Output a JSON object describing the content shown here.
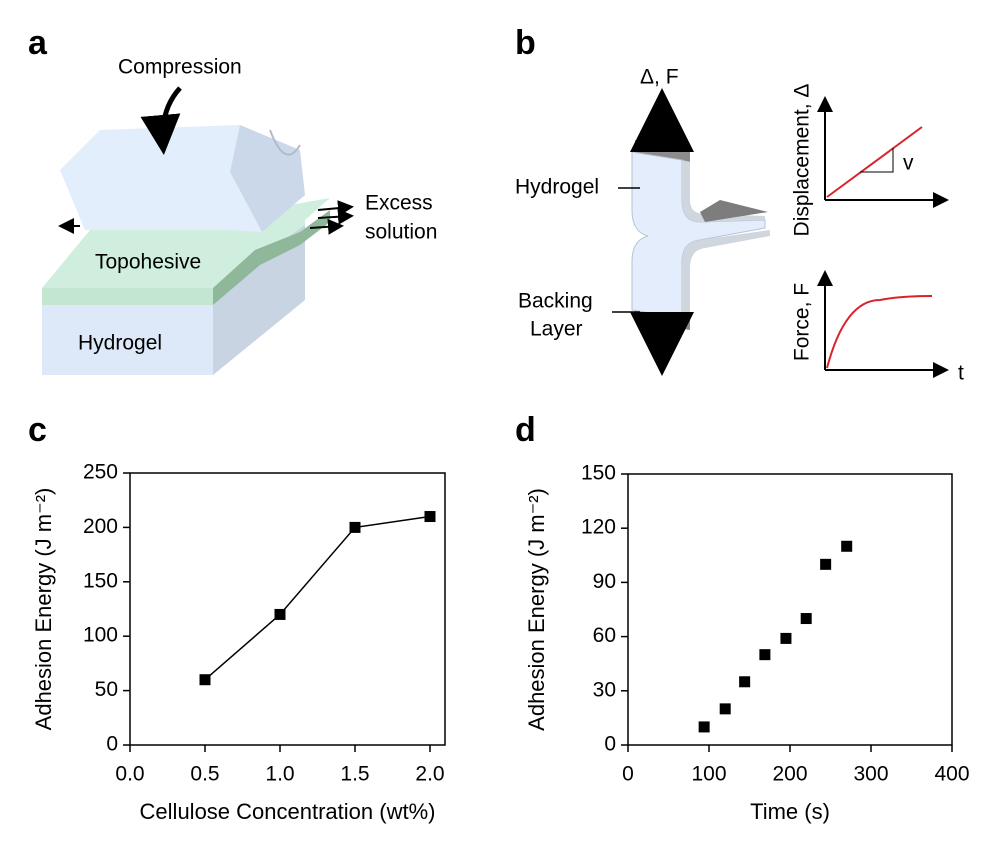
{
  "panels": {
    "a": "a",
    "b": "b",
    "c": "c",
    "d": "d"
  },
  "diagram_a": {
    "compression": "Compression",
    "excess_1": "Excess",
    "excess_2": "solution",
    "topohesive": "Topohesive",
    "hydrogel": "Hydrogel"
  },
  "diagram_b": {
    "pull": "Δ, F",
    "hydrogel": "Hydrogel",
    "backing_1": "Backing",
    "backing_2": "Layer",
    "displacement": "Displacement, Δ",
    "rate": "v",
    "force": "Force, F",
    "time": "t"
  },
  "chart_data": [
    {
      "type": "line",
      "xlabel": "Cellulose Concentration (wt%)",
      "ylabel": "Adhesion Energy (J m⁻²)",
      "x": [
        0.5,
        1.0,
        1.5,
        2.0
      ],
      "values": [
        60,
        120,
        200,
        210
      ],
      "color": "#000000",
      "xlim": [
        0,
        2.1
      ],
      "ylim": [
        0,
        250
      ],
      "xticks": [
        {
          "value": 0,
          "label": "0.0"
        },
        {
          "value": 0.5,
          "label": "0.5"
        },
        {
          "value": 1,
          "label": "1.0"
        },
        {
          "value": 1.5,
          "label": "1.5"
        },
        {
          "value": 2,
          "label": "2.0"
        }
      ],
      "yticks": [
        0,
        50,
        100,
        150,
        200,
        250
      ]
    },
    {
      "type": "scatter",
      "xlabel": "Time (s)",
      "ylabel": "Adhesion Energy (J m⁻²)",
      "x": [
        94,
        120,
        144,
        169,
        195,
        220,
        244,
        270
      ],
      "values": [
        10,
        20,
        35,
        50,
        59,
        70,
        100,
        110
      ],
      "color": "#000000",
      "xlim": [
        0,
        400
      ],
      "ylim": [
        0,
        150
      ],
      "xticks": [
        0,
        100,
        200,
        300,
        400
      ],
      "yticks": [
        0,
        30,
        60,
        90,
        120,
        150
      ]
    }
  ]
}
